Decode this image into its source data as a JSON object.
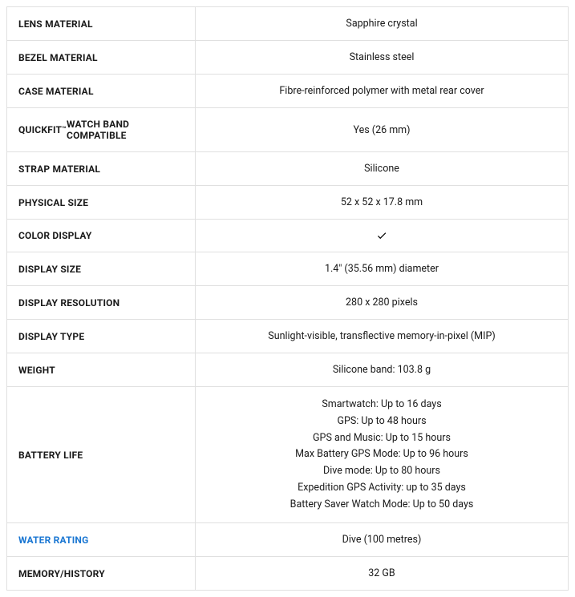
{
  "colors": {
    "border": "#e0e0e0",
    "text": "#1a1a1a",
    "link": "#1976d2",
    "background": "#ffffff"
  },
  "typography": {
    "label_fontsize": 12,
    "label_weight": 700,
    "value_fontsize": 12.5
  },
  "specs": [
    {
      "label": "LENS MATERIAL",
      "value": "Sapphire crystal",
      "type": "text",
      "link": false
    },
    {
      "label": "BEZEL MATERIAL",
      "value": "Stainless steel",
      "type": "text",
      "link": false
    },
    {
      "label": "CASE MATERIAL",
      "value": "Fibre-reinforced polymer with metal rear cover",
      "type": "text",
      "link": false
    },
    {
      "label": "QUICKFIT™ WATCH BAND COMPATIBLE",
      "value": "Yes (26 mm)",
      "type": "text",
      "link": false,
      "tm": true
    },
    {
      "label": "STRAP MATERIAL",
      "value": "Silicone",
      "type": "text",
      "link": false
    },
    {
      "label": "PHYSICAL SIZE",
      "value": "52 x 52 x 17.8 mm",
      "type": "text",
      "link": false
    },
    {
      "label": "COLOR DISPLAY",
      "value": "check",
      "type": "check",
      "link": false
    },
    {
      "label": "DISPLAY SIZE",
      "value": "1.4\" (35.56 mm) diameter",
      "type": "text",
      "link": false
    },
    {
      "label": "DISPLAY RESOLUTION",
      "value": "280 x 280 pixels",
      "type": "text",
      "link": false
    },
    {
      "label": "DISPLAY TYPE",
      "value": "Sunlight-visible, transflective memory-in-pixel (MIP)",
      "type": "text",
      "link": false
    },
    {
      "label": "WEIGHT",
      "value": "Silicone band: 103.8 g",
      "type": "text",
      "link": false
    },
    {
      "label": "BATTERY LIFE",
      "type": "multi",
      "link": false,
      "lines": [
        "Smartwatch: Up to 16 days",
        "GPS: Up to 48 hours",
        "GPS and Music: Up to 15 hours",
        "Max Battery GPS Mode: Up to 96 hours",
        "Dive mode: Up to 80 hours",
        "Expedition GPS Activity: up to 35 days",
        "Battery Saver Watch Mode: Up to 50 days"
      ]
    },
    {
      "label": "WATER RATING",
      "value": "Dive (100 metres)",
      "type": "text",
      "link": true
    },
    {
      "label": "MEMORY/HISTORY",
      "value": "32 GB",
      "type": "text",
      "link": false
    }
  ]
}
